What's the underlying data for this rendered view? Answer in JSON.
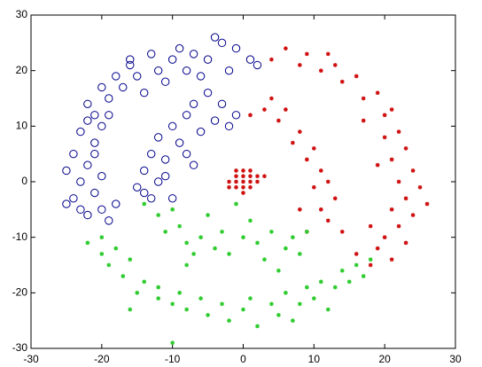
{
  "chart_data": {
    "type": "scatter",
    "xlim": [
      -30,
      30
    ],
    "ylim": [
      -30,
      30
    ],
    "xticks": [
      -30,
      -20,
      -10,
      0,
      10,
      20,
      30
    ],
    "yticks": [
      -30,
      -20,
      -10,
      0,
      10,
      20,
      30
    ],
    "grid": false,
    "series": [
      {
        "color": "#00008b",
        "marker": "circle",
        "x": [
          -1,
          -3,
          -5,
          -7,
          -8,
          -10,
          -12,
          -13,
          -15,
          -16,
          -17,
          -18,
          -19,
          -20,
          -21,
          -22,
          -20,
          -23,
          -21,
          -24,
          -22,
          -25,
          -23,
          -24,
          -21,
          -22,
          -20,
          -19,
          -23,
          1,
          2,
          -2,
          -6,
          -11,
          -14,
          -19,
          -22,
          -20,
          -18,
          -25,
          -4,
          -9,
          -16,
          -21,
          -5,
          -3,
          -7,
          -4,
          -8,
          -10,
          -6,
          -12,
          -9,
          -13,
          -11,
          -14,
          -12,
          -15,
          -13,
          -10,
          -14,
          -8,
          -2,
          -1,
          -7,
          -11
        ],
        "y": [
          24,
          25,
          22,
          23,
          20,
          22,
          20,
          23,
          19,
          21,
          17,
          19,
          15,
          17,
          12,
          14,
          10,
          9,
          7,
          5,
          3,
          2,
          0,
          -3,
          -2,
          -6,
          -5,
          -7,
          -5,
          22,
          21,
          20,
          19,
          18,
          16,
          12,
          11,
          1,
          -4,
          -4,
          26,
          24,
          22,
          5,
          16,
          14,
          14,
          11,
          12,
          10,
          9,
          8,
          7,
          5,
          4,
          2,
          0,
          -1,
          -3,
          -3,
          -2,
          5,
          10,
          12,
          3,
          1
        ]
      },
      {
        "color": "#d01010",
        "marker": "star",
        "x": [
          4,
          6,
          8,
          9,
          11,
          13,
          14,
          16,
          17,
          19,
          20,
          21,
          22,
          20,
          23,
          21,
          24,
          22,
          25,
          23,
          21,
          24,
          22,
          20,
          23,
          19,
          21,
          18,
          16,
          18,
          19,
          17,
          12,
          26,
          1,
          3,
          5,
          6,
          8,
          7,
          10,
          9,
          11,
          12,
          10,
          13,
          11,
          12,
          14,
          9,
          4,
          8,
          0,
          1,
          -1,
          0,
          1,
          -1,
          0,
          2,
          -2,
          1,
          -1,
          2,
          0,
          -2,
          1,
          3,
          -1,
          0
        ],
        "y": [
          22,
          24,
          21,
          23,
          20,
          21,
          18,
          19,
          15,
          16,
          12,
          13,
          9,
          8,
          6,
          4,
          2,
          0,
          -1,
          -3,
          -5,
          -6,
          -8,
          -10,
          -11,
          -12,
          -14,
          -15,
          -13,
          -8,
          3,
          11,
          23,
          -4,
          12,
          13,
          11,
          13,
          9,
          7,
          6,
          4,
          2,
          0,
          -1,
          -3,
          -5,
          -7,
          -9,
          -9,
          15,
          -5,
          0,
          0,
          1,
          1,
          1,
          -1,
          -1,
          0,
          0,
          -1,
          0,
          1,
          2,
          -1,
          2,
          1,
          2,
          -2
        ]
      },
      {
        "color": "#2ecc2e",
        "marker": "star",
        "x": [
          -20,
          -22,
          -18,
          -19,
          -16,
          -17,
          -14,
          -15,
          -12,
          -12,
          -10,
          -9,
          -8,
          -6,
          -5,
          -3,
          -2,
          0,
          1,
          2,
          4,
          5,
          6,
          8,
          9,
          10,
          11,
          13,
          14,
          15,
          16,
          17,
          18,
          12,
          -20,
          -16,
          -10,
          7,
          -14,
          -12,
          -10,
          -11,
          -9,
          -8,
          -6,
          -7,
          -4,
          -3,
          -2,
          0,
          1,
          2,
          3,
          4,
          6,
          7,
          8,
          9,
          -5,
          -1,
          5,
          -8
        ],
        "y": [
          -10,
          -11,
          -12,
          -15,
          -14,
          -17,
          -18,
          -20,
          -19,
          -21,
          -22,
          -20,
          -23,
          -21,
          -24,
          -22,
          -25,
          -23,
          -21,
          -26,
          -22,
          -24,
          -20,
          -22,
          -19,
          -21,
          -18,
          -19,
          -16,
          -18,
          -15,
          -17,
          -14,
          -23,
          -13,
          -23,
          -29,
          -25,
          -4,
          -6,
          -5,
          -9,
          -8,
          -11,
          -10,
          -13,
          -12,
          -9,
          -13,
          -10,
          -7,
          -11,
          -14,
          -9,
          -12,
          -10,
          -13,
          -9,
          -6,
          -4,
          -16,
          -15
        ]
      }
    ]
  }
}
